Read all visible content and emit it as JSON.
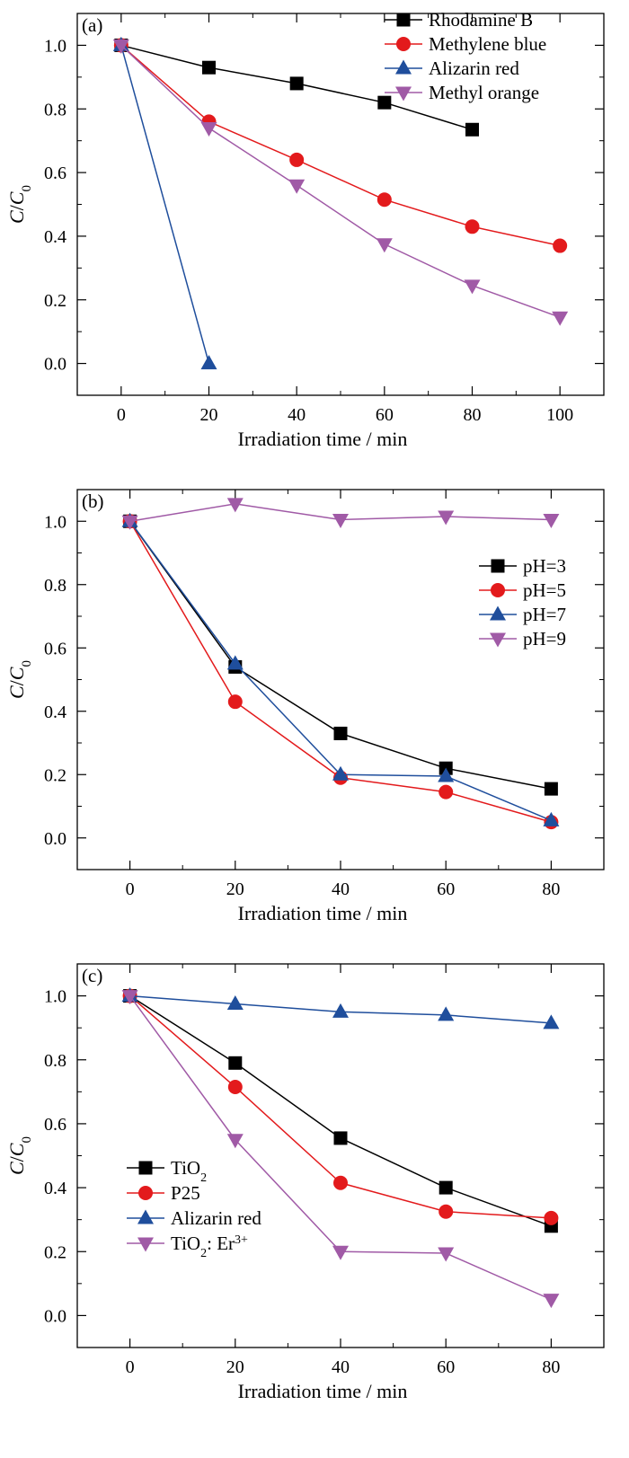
{
  "chart_data": [
    {
      "type": "line",
      "panel_label": "(a)",
      "xlabel": "Irradiation time / min",
      "ylabel": "C/C0",
      "xlim": [
        -10,
        110
      ],
      "ylim": [
        -0.1,
        1.1
      ],
      "xticks": [
        0,
        20,
        40,
        60,
        80,
        100
      ],
      "yticks": [
        0.0,
        0.2,
        0.4,
        0.6,
        0.8,
        1.0
      ],
      "tick_labels_x": [
        "0",
        "20",
        "40",
        "60",
        "80",
        "100"
      ],
      "tick_labels_y": [
        "0.0",
        "0.2",
        "0.4",
        "0.6",
        "0.8",
        "1.0"
      ],
      "grid": false,
      "legend_position": "top-right",
      "series": [
        {
          "name": "Rhodamine B",
          "color": "#000000",
          "marker": "square",
          "x": [
            0,
            20,
            40,
            60,
            80
          ],
          "y": [
            1.0,
            0.93,
            0.88,
            0.82,
            0.735
          ]
        },
        {
          "name": "Methylene blue",
          "color": "#e31a1c",
          "marker": "circle",
          "x": [
            0,
            20,
            40,
            60,
            80,
            100
          ],
          "y": [
            1.0,
            0.76,
            0.64,
            0.515,
            0.43,
            0.37
          ]
        },
        {
          "name": "Alizarin red",
          "color": "#1f4e9c",
          "marker": "triangle-up",
          "x": [
            0,
            20
          ],
          "y": [
            1.0,
            0.0
          ]
        },
        {
          "name": "Methyl orange",
          "color": "#a05aa6",
          "marker": "triangle-down",
          "x": [
            0,
            20,
            40,
            60,
            80,
            100
          ],
          "y": [
            1.0,
            0.74,
            0.56,
            0.375,
            0.245,
            0.145
          ]
        }
      ]
    },
    {
      "type": "line",
      "panel_label": "(b)",
      "xlabel": "Irradiation time / min",
      "ylabel": "C/C0",
      "xlim": [
        -10,
        90
      ],
      "ylim": [
        -0.1,
        1.1
      ],
      "xticks": [
        0,
        20,
        40,
        60,
        80
      ],
      "yticks": [
        0.0,
        0.2,
        0.4,
        0.6,
        0.8,
        1.0
      ],
      "tick_labels_x": [
        "0",
        "20",
        "40",
        "60",
        "80"
      ],
      "tick_labels_y": [
        "0.0",
        "0.2",
        "0.4",
        "0.6",
        "0.8",
        "1.0"
      ],
      "grid": false,
      "legend_position": "right",
      "series": [
        {
          "name": "pH=3",
          "color": "#000000",
          "marker": "square",
          "x": [
            0,
            20,
            40,
            60,
            80
          ],
          "y": [
            1.0,
            0.54,
            0.33,
            0.22,
            0.155
          ]
        },
        {
          "name": "pH=5",
          "color": "#e31a1c",
          "marker": "circle",
          "x": [
            0,
            20,
            40,
            60,
            80
          ],
          "y": [
            1.0,
            0.43,
            0.19,
            0.145,
            0.05
          ]
        },
        {
          "name": "pH=7",
          "color": "#1f4e9c",
          "marker": "triangle-up",
          "x": [
            0,
            20,
            40,
            60,
            80
          ],
          "y": [
            1.0,
            0.55,
            0.2,
            0.195,
            0.055
          ]
        },
        {
          "name": "pH=9",
          "color": "#a05aa6",
          "marker": "triangle-down",
          "x": [
            0,
            20,
            40,
            60,
            80
          ],
          "y": [
            1.0,
            1.055,
            1.005,
            1.015,
            1.005
          ]
        }
      ]
    },
    {
      "type": "line",
      "panel_label": "(c)",
      "xlabel": "Irradiation time / min",
      "ylabel": "C/C0",
      "xlim": [
        -10,
        90
      ],
      "ylim": [
        -0.1,
        1.1
      ],
      "xticks": [
        0,
        20,
        40,
        60,
        80
      ],
      "yticks": [
        0.0,
        0.2,
        0.4,
        0.6,
        0.8,
        1.0
      ],
      "tick_labels_x": [
        "0",
        "20",
        "40",
        "60",
        "80"
      ],
      "tick_labels_y": [
        "0.0",
        "0.2",
        "0.4",
        "0.6",
        "0.8",
        "1.0"
      ],
      "grid": false,
      "legend_position": "bottom-left",
      "series": [
        {
          "name": "TiO2",
          "color": "#000000",
          "marker": "square",
          "x": [
            0,
            20,
            40,
            60,
            80
          ],
          "y": [
            1.0,
            0.79,
            0.555,
            0.4,
            0.28
          ]
        },
        {
          "name": "P25",
          "color": "#e31a1c",
          "marker": "circle",
          "x": [
            0,
            20,
            40,
            60,
            80
          ],
          "y": [
            1.0,
            0.715,
            0.415,
            0.325,
            0.305
          ]
        },
        {
          "name": "Alizarin red",
          "color": "#1f4e9c",
          "marker": "triangle-up",
          "x": [
            0,
            20,
            40,
            60,
            80
          ],
          "y": [
            1.0,
            0.975,
            0.95,
            0.94,
            0.915
          ]
        },
        {
          "name": "TiO2: Er3+",
          "color": "#a05aa6",
          "marker": "triangle-down",
          "x": [
            0,
            20,
            40,
            60,
            80
          ],
          "y": [
            1.0,
            0.55,
            0.2,
            0.195,
            0.05
          ]
        }
      ]
    }
  ]
}
